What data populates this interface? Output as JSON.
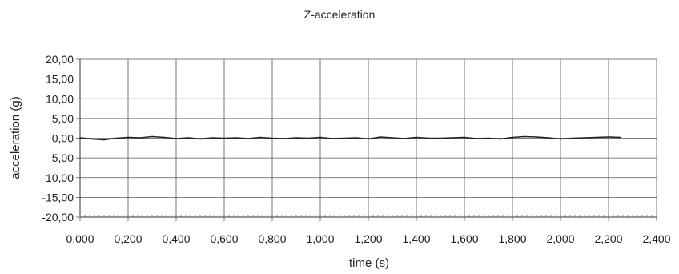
{
  "chart_data": {
    "type": "line",
    "title": "Z-acceleration",
    "xlabel": "time (s)",
    "ylabel": "acceleration (g)",
    "xlim": [
      0,
      2.4
    ],
    "ylim": [
      -20,
      20
    ],
    "x_ticks": [
      "0,000",
      "0,200",
      "0,400",
      "0,600",
      "0,800",
      "1,000",
      "1,200",
      "1,400",
      "1,600",
      "1,800",
      "2,000",
      "2,200",
      "2,400"
    ],
    "y_ticks": [
      "20,00",
      "15,00",
      "10,00",
      "5,00",
      "0,00",
      "-5,00",
      "-10,00",
      "-15,00",
      "-20,00"
    ],
    "grid": true,
    "legend": "none",
    "line_color": "#222222",
    "series": [
      {
        "x": [
          0.0,
          0.05,
          0.1,
          0.15,
          0.2,
          0.25,
          0.3,
          0.35,
          0.4,
          0.45,
          0.5,
          0.55,
          0.6,
          0.65,
          0.7,
          0.75,
          0.8,
          0.85,
          0.9,
          0.95,
          1.0,
          1.05,
          1.1,
          1.15,
          1.2,
          1.25,
          1.3,
          1.35,
          1.4,
          1.45,
          1.5,
          1.55,
          1.6,
          1.65,
          1.7,
          1.75,
          1.8,
          1.85,
          1.9,
          1.95,
          2.0,
          2.05,
          2.1,
          2.15,
          2.2,
          2.25
        ],
        "values": [
          0.1,
          -0.2,
          -0.4,
          0.0,
          0.2,
          0.1,
          0.4,
          0.2,
          -0.1,
          0.1,
          -0.2,
          0.1,
          0.0,
          0.1,
          -0.1,
          0.2,
          0.0,
          -0.1,
          0.1,
          0.0,
          0.2,
          -0.1,
          0.0,
          0.1,
          -0.2,
          0.3,
          0.1,
          -0.1,
          0.2,
          0.0,
          0.0,
          0.1,
          0.2,
          -0.1,
          0.0,
          -0.2,
          0.2,
          0.4,
          0.3,
          0.1,
          -0.2,
          0.0,
          0.1,
          0.2,
          0.3,
          0.2
        ]
      }
    ]
  }
}
